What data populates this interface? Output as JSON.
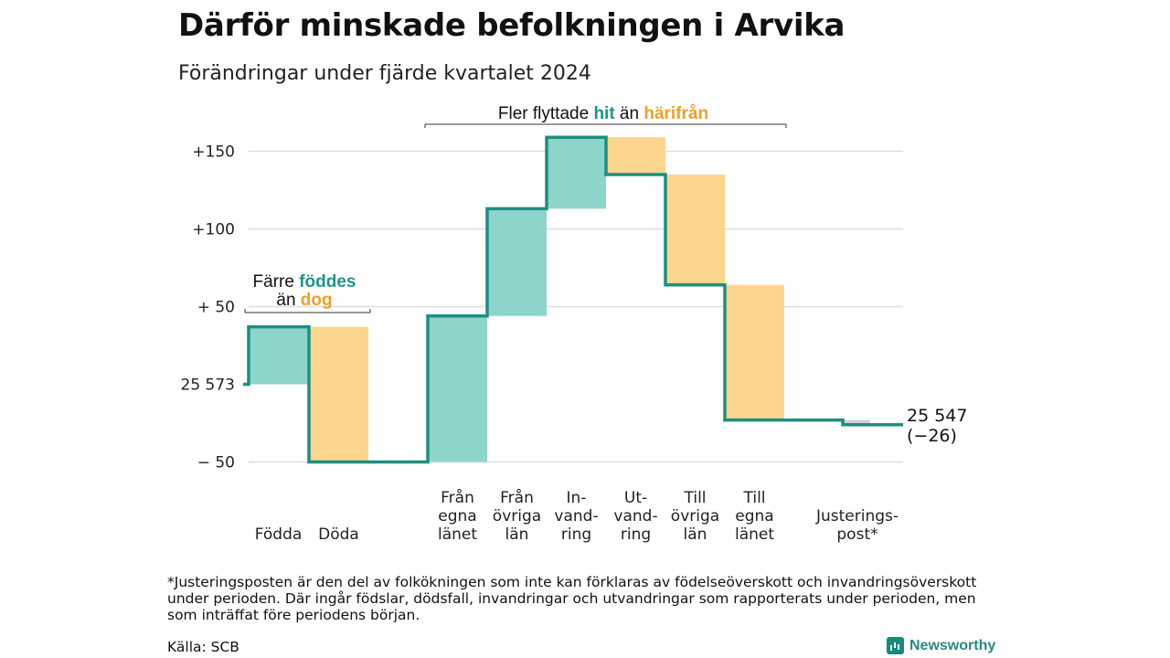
{
  "header": {
    "title": "Därför minskade befolkningen i Arvika",
    "subtitle": "Förändringar under fjärde kvartalet 2024"
  },
  "footnote": "*Justeringsposten är den del av folkökningen som inte kan förklaras av födelseöverskott och invandringsöverskott under perioden. Där ingår födslar, dödsfall, invandringar och utvandringar som rapporterats under perioden, men som inträffat före periodens början.",
  "source": "Källa: SCB",
  "brand": {
    "name": "Newsworthy",
    "icon": "newsworthy-logo-icon"
  },
  "colors": {
    "increase": "#8dd5cb",
    "decrease": "#fcd68f",
    "line": "#1d8f80",
    "teal_text": "#1a9787",
    "orange_text": "#eca02a",
    "adjust": "#d0d0d0",
    "grid": "#dddddd"
  },
  "chart_data": {
    "type": "waterfall",
    "base_value": 25573,
    "end_value": 25547,
    "start_label": "25 573",
    "end_label": "25 547",
    "end_change_label": "(−26)",
    "ylim": [
      -50,
      150
    ],
    "y_ticks": [
      {
        "value": -50,
        "label": "−  50"
      },
      {
        "value": 50,
        "label": "+ 50"
      },
      {
        "value": 100,
        "label": "+100"
      },
      {
        "value": 150,
        "label": "+150"
      }
    ],
    "steps": [
      {
        "label": [
          "Födda"
        ],
        "change": 37,
        "kind": "increase"
      },
      {
        "label": [
          "Döda"
        ],
        "change": -87,
        "kind": "decrease"
      },
      {
        "label": [
          "Från",
          "egna",
          "länet"
        ],
        "change": 94,
        "kind": "increase"
      },
      {
        "label": [
          "Från",
          "övriga",
          "län"
        ],
        "change": 69,
        "kind": "increase"
      },
      {
        "label": [
          "In-",
          "vand-",
          "ring"
        ],
        "change": 46,
        "kind": "increase"
      },
      {
        "label": [
          "Ut-",
          "vand-",
          "ring"
        ],
        "change": -24,
        "kind": "decrease"
      },
      {
        "label": [
          "Till",
          "övriga",
          "län"
        ],
        "change": -71,
        "kind": "decrease"
      },
      {
        "label": [
          "Till",
          "egna",
          "länet"
        ],
        "change": -87,
        "kind": "decrease"
      },
      {
        "label": [
          "Justerings-",
          "post*"
        ],
        "change": -3,
        "kind": "adjustment"
      }
    ],
    "annotations": [
      {
        "parts": [
          {
            "text": "Färre ",
            "color": "plain"
          },
          {
            "text": "föddes",
            "color": "teal"
          }
        ],
        "line2": [
          {
            "text": "än ",
            "color": "plain"
          },
          {
            "text": "dog",
            "color": "orange"
          }
        ]
      },
      {
        "parts": [
          {
            "text": "Fler flyttade ",
            "color": "plain"
          },
          {
            "text": "hit",
            "color": "teal"
          },
          {
            "text": " än ",
            "color": "plain"
          },
          {
            "text": "härifrån",
            "color": "orange"
          }
        ]
      }
    ]
  }
}
